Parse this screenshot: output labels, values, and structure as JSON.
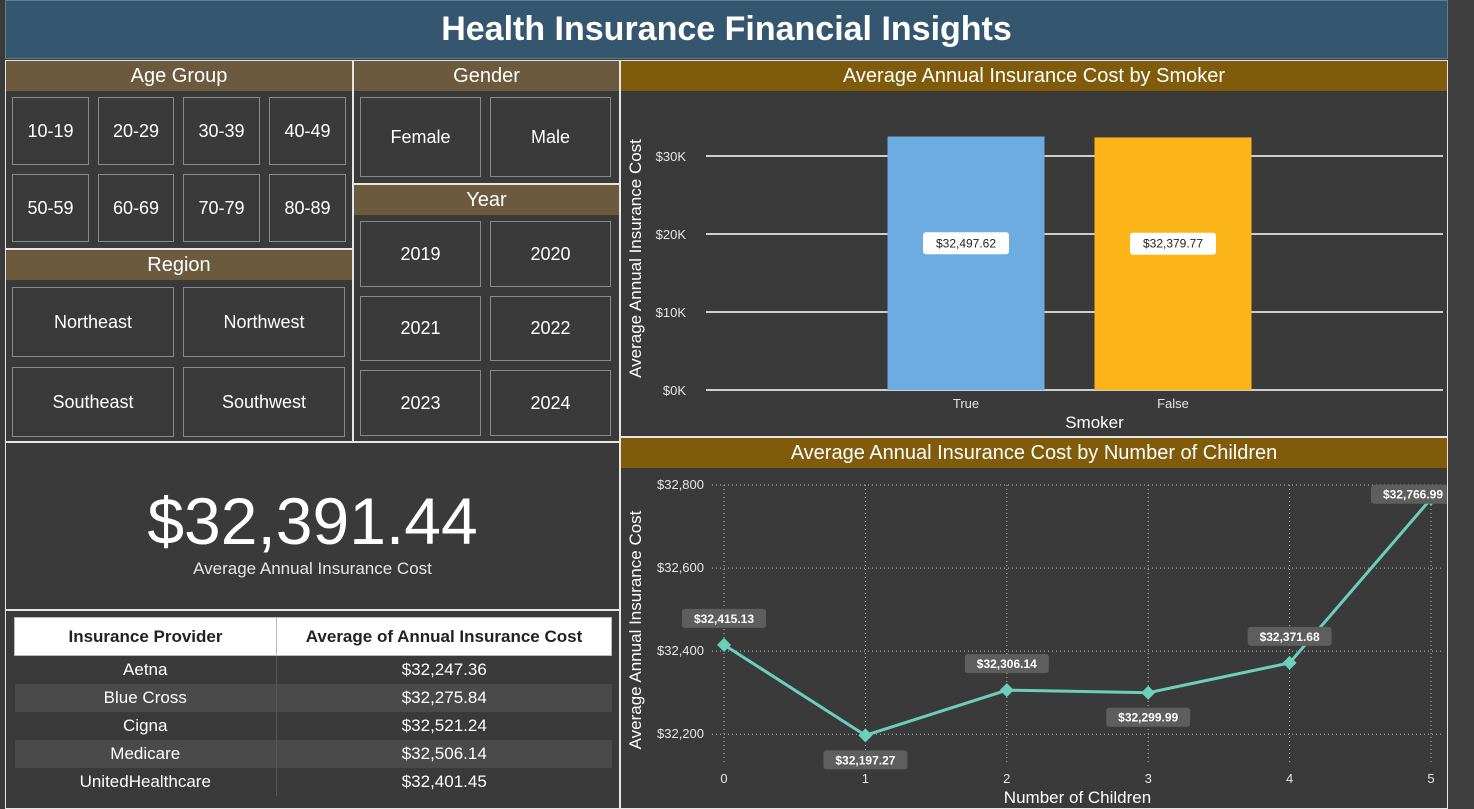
{
  "title": "Health Insurance Financial Insights",
  "age_group": {
    "header": "Age Group",
    "items": [
      "10-19",
      "20-29",
      "30-39",
      "40-49",
      "50-59",
      "60-69",
      "70-79",
      "80-89"
    ]
  },
  "gender": {
    "header": "Gender",
    "items": [
      "Female",
      "Male"
    ]
  },
  "year": {
    "header": "Year",
    "items": [
      "2019",
      "2020",
      "2021",
      "2022",
      "2023",
      "2024"
    ]
  },
  "region": {
    "header": "Region",
    "items": [
      "Northeast",
      "Northwest",
      "Southeast",
      "Southwest"
    ]
  },
  "kpi": {
    "value": "$32,391.44",
    "label": "Average Annual Insurance Cost"
  },
  "provider_table": {
    "columns": [
      "Insurance Provider",
      "Average of Annual Insurance Cost"
    ],
    "rows": [
      [
        "Aetna",
        "$32,247.36"
      ],
      [
        "Blue Cross",
        "$32,275.84"
      ],
      [
        "Cigna",
        "$32,521.24"
      ],
      [
        "Medicare",
        "$32,506.14"
      ],
      [
        "UnitedHealthcare",
        "$32,401.45"
      ]
    ]
  },
  "colors": {
    "true_bar": "#6cace0",
    "false_bar": "#fbb518",
    "line": "#6dcfb9",
    "header": "#6b5a3e",
    "title": "#34566f"
  },
  "chart_data": [
    {
      "type": "bar",
      "title": "Average Annual Insurance Cost by Smoker",
      "xlabel": "Smoker",
      "ylabel": "Average Annual Insurance Cost",
      "categories": [
        "True",
        "False"
      ],
      "values": [
        32497.62,
        32379.77
      ],
      "data_labels": [
        "$32,497.62",
        "$32,379.77"
      ],
      "yticks": [
        "$0K",
        "$10K",
        "$20K",
        "$30K"
      ],
      "ytick_values": [
        0,
        10000,
        20000,
        30000
      ],
      "ylim": [
        0,
        35000
      ],
      "grid": true
    },
    {
      "type": "line",
      "title": "Average Annual Insurance Cost by Number of Children",
      "xlabel": "Number of Children",
      "ylabel": "Average Annual Insurance Cost",
      "x": [
        0,
        1,
        2,
        3,
        4,
        5
      ],
      "x_labels": [
        "0",
        "1",
        "2",
        "3",
        "4",
        "5"
      ],
      "values": [
        32415.13,
        32197.27,
        32306.14,
        32299.99,
        32371.68,
        32766.99
      ],
      "data_labels": [
        "$32,415.13",
        "$32,197.27",
        "$32,306.14",
        "$32,299.99",
        "$32,371.68",
        "$32,766.99"
      ],
      "yticks": [
        "$32,200",
        "$32,400",
        "$32,600",
        "$32,800"
      ],
      "ytick_values": [
        32200,
        32400,
        32600,
        32800
      ],
      "ylim": [
        32150,
        32800
      ],
      "grid": true
    }
  ]
}
